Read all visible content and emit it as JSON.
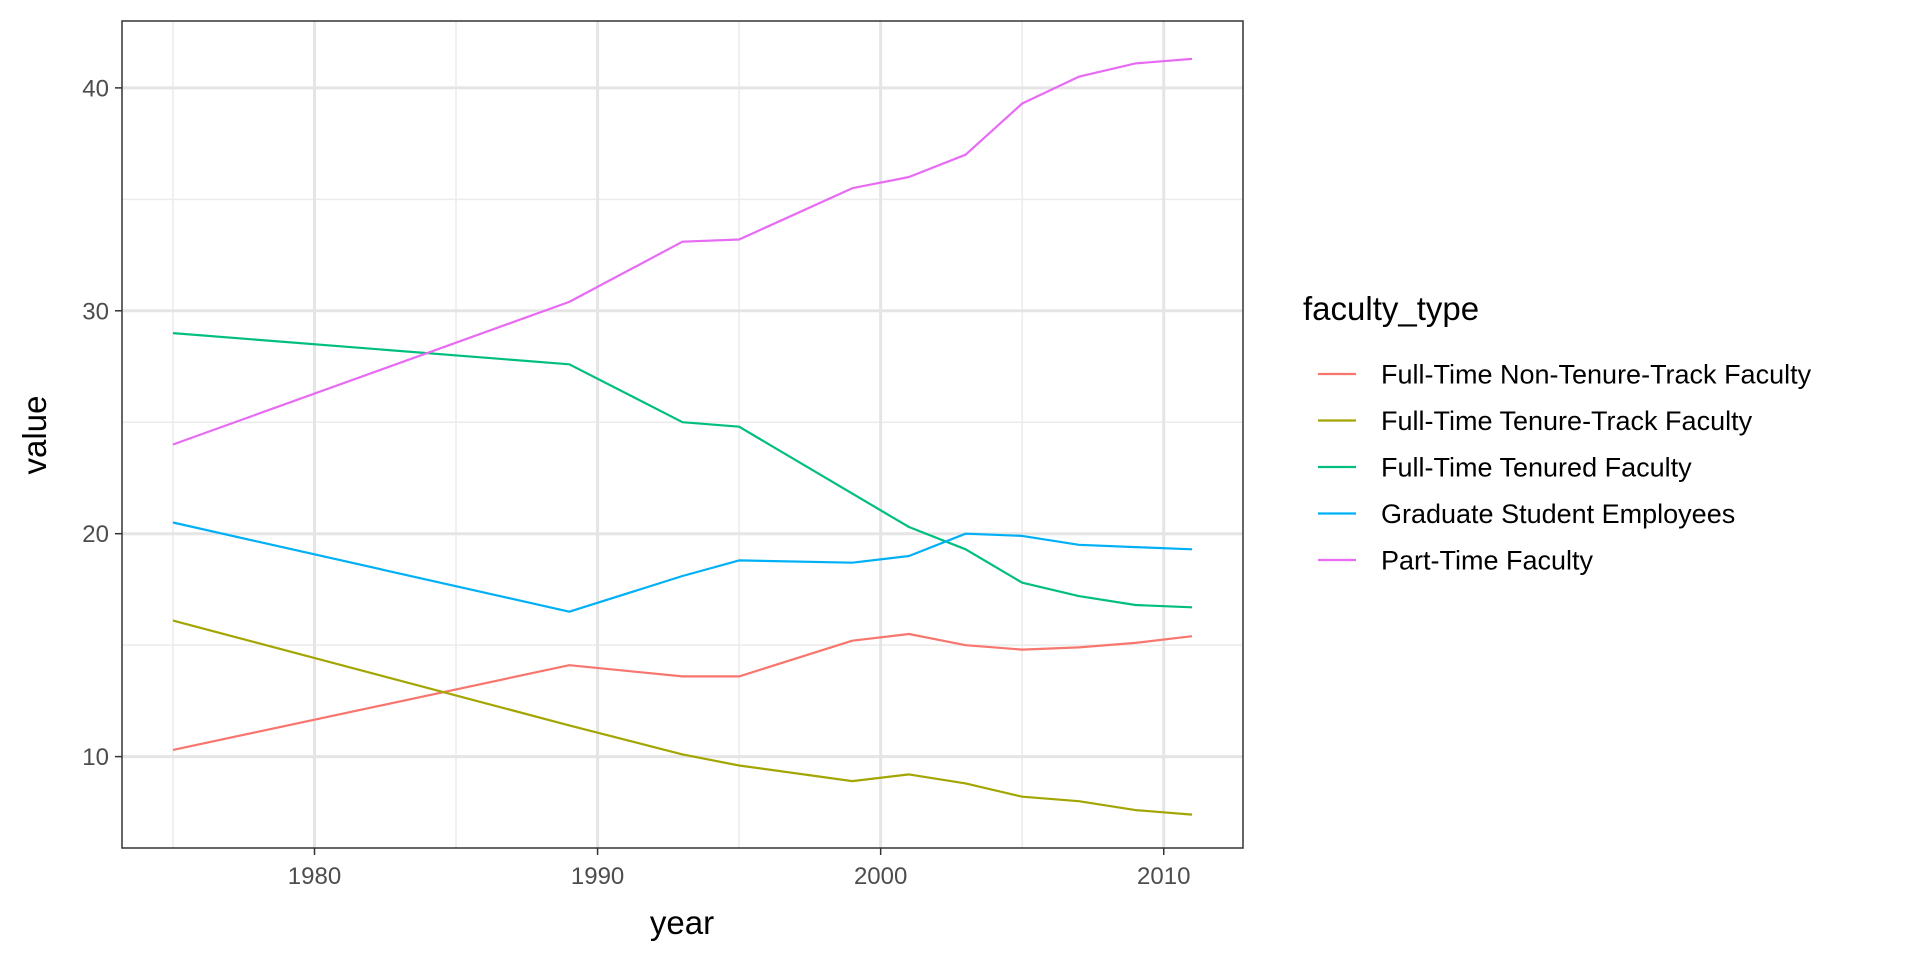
{
  "chart_data": {
    "type": "line",
    "xlabel": "year",
    "ylabel": "value",
    "xlim": [
      1973.2,
      2012.8
    ],
    "ylim": [
      5.9,
      43
    ],
    "x_ticks": [
      1980,
      1990,
      2000,
      2010
    ],
    "x_tick_labels": [
      "1980",
      "1990",
      "2000",
      "2010"
    ],
    "y_ticks": [
      10,
      20,
      30,
      40
    ],
    "y_tick_labels": [
      "10",
      "20",
      "30",
      "40"
    ],
    "grid": true,
    "legend": {
      "title": "faculty_type",
      "placement": "right"
    },
    "x": [
      1975,
      1989,
      1993,
      1995,
      1999,
      2001,
      2003,
      2005,
      2007,
      2009,
      2011
    ],
    "series": [
      {
        "name": "Full-Time Non-Tenure-Track Faculty",
        "color": "#F8766D",
        "values": [
          10.3,
          14.1,
          13.6,
          13.6,
          15.2,
          15.5,
          15.0,
          14.8,
          14.9,
          15.1,
          15.4
        ]
      },
      {
        "name": "Full-Time Tenure-Track Faculty",
        "color": "#A3A500",
        "values": [
          16.1,
          11.4,
          10.1,
          9.6,
          8.9,
          9.2,
          8.8,
          8.2,
          8.0,
          7.6,
          7.4
        ]
      },
      {
        "name": "Full-Time Tenured Faculty",
        "color": "#00BF7D",
        "values": [
          29.0,
          27.6,
          25.0,
          24.8,
          21.8,
          20.3,
          19.3,
          17.8,
          17.2,
          16.8,
          16.7
        ]
      },
      {
        "name": "Graduate Student Employees",
        "color": "#00B0F6",
        "values": [
          20.5,
          16.5,
          18.1,
          18.8,
          18.7,
          19.0,
          20.0,
          19.9,
          19.5,
          19.4,
          19.3
        ]
      },
      {
        "name": "Part-Time Faculty",
        "color": "#E76BF3",
        "values": [
          24.0,
          30.4,
          33.1,
          33.2,
          35.5,
          36.0,
          37.0,
          39.3,
          40.5,
          41.1,
          41.3
        ]
      }
    ]
  }
}
